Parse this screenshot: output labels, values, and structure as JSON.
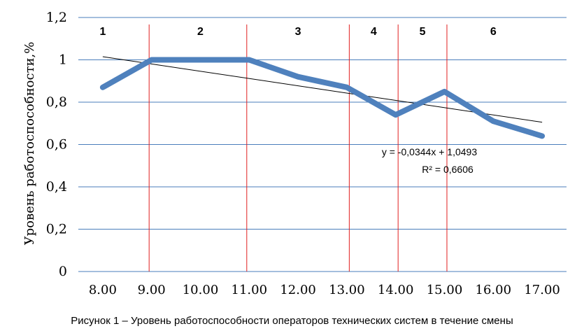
{
  "chart_data": {
    "type": "line",
    "categories": [
      "8.00",
      "9.00",
      "10.00",
      "11.00",
      "12.00",
      "13.00",
      "14.00",
      "15.00",
      "16.00",
      "17.00"
    ],
    "series": [
      {
        "values": [
          0.87,
          1.0,
          1.0,
          1.0,
          0.92,
          0.87,
          0.74,
          0.85,
          0.71,
          0.64
        ],
        "color": "#4f81bd"
      }
    ],
    "trendline": {
      "slope": -0.0344,
      "intercept": 1.0493,
      "equation": "y = -0,0344x + 1,0493",
      "r2": "R² = 0,6606",
      "color": "#000000"
    },
    "ylabel": "Уровень работоспособности,%",
    "ylim": [
      0,
      1.2
    ],
    "yticks": [
      0,
      0.2,
      0.4,
      0.6,
      0.8,
      1.0,
      1.2
    ],
    "ytick_labels": [
      "0",
      "0,2",
      "0,4",
      "0,6",
      "0,8",
      "1",
      "1,2"
    ],
    "grid": true,
    "grid_color": "#4a7ebb",
    "zone_separators": [
      0.95,
      2.95,
      5.05,
      6.05,
      7.05
    ],
    "separator_color": "#e02020",
    "zones": [
      {
        "label": "1",
        "pos": 0.0
      },
      {
        "label": "2",
        "pos": 2.0
      },
      {
        "label": "3",
        "pos": 4.0
      },
      {
        "label": "4",
        "pos": 5.55
      },
      {
        "label": "5",
        "pos": 6.55
      },
      {
        "label": "6",
        "pos": 8.0
      }
    ]
  },
  "caption": "Рисунок 1 – Уровень работоспособности операторов технических систем в течение смены"
}
